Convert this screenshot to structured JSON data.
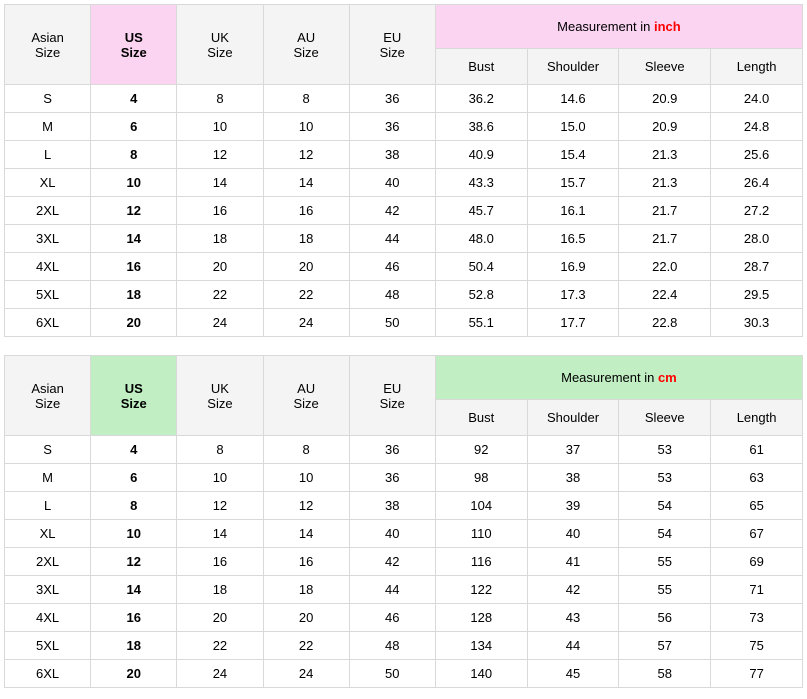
{
  "tables": [
    {
      "highlight_bg": "#fbd4f2",
      "header_bg": "#f4f4f4",
      "unit_label_prefix": "Measurement in ",
      "unit_label_unit": "inch",
      "unit_color": "#ff0000",
      "size_headers": {
        "asian": "Asian\nSize",
        "us": "US\nSize",
        "uk": "UK\nSize",
        "au": "AU\nSize",
        "eu": "EU\nSize"
      },
      "measure_headers": [
        "Bust",
        "Shoulder",
        "Sleeve",
        "Length"
      ],
      "rows": [
        {
          "asian": "S",
          "us": "4",
          "uk": "8",
          "au": "8",
          "eu": "36",
          "m": [
            "36.2",
            "14.6",
            "20.9",
            "24.0"
          ]
        },
        {
          "asian": "M",
          "us": "6",
          "uk": "10",
          "au": "10",
          "eu": "36",
          "m": [
            "38.6",
            "15.0",
            "20.9",
            "24.8"
          ]
        },
        {
          "asian": "L",
          "us": "8",
          "uk": "12",
          "au": "12",
          "eu": "38",
          "m": [
            "40.9",
            "15.4",
            "21.3",
            "25.6"
          ]
        },
        {
          "asian": "XL",
          "us": "10",
          "uk": "14",
          "au": "14",
          "eu": "40",
          "m": [
            "43.3",
            "15.7",
            "21.3",
            "26.4"
          ]
        },
        {
          "asian": "2XL",
          "us": "12",
          "uk": "16",
          "au": "16",
          "eu": "42",
          "m": [
            "45.7",
            "16.1",
            "21.7",
            "27.2"
          ]
        },
        {
          "asian": "3XL",
          "us": "14",
          "uk": "18",
          "au": "18",
          "eu": "44",
          "m": [
            "48.0",
            "16.5",
            "21.7",
            "28.0"
          ]
        },
        {
          "asian": "4XL",
          "us": "16",
          "uk": "20",
          "au": "20",
          "eu": "46",
          "m": [
            "50.4",
            "16.9",
            "22.0",
            "28.7"
          ]
        },
        {
          "asian": "5XL",
          "us": "18",
          "uk": "22",
          "au": "22",
          "eu": "48",
          "m": [
            "52.8",
            "17.3",
            "22.4",
            "29.5"
          ]
        },
        {
          "asian": "6XL",
          "us": "20",
          "uk": "24",
          "au": "24",
          "eu": "50",
          "m": [
            "55.1",
            "17.7",
            "22.8",
            "30.3"
          ]
        }
      ]
    },
    {
      "highlight_bg": "#c1efc3",
      "header_bg": "#f4f4f4",
      "unit_label_prefix": "Measurement in ",
      "unit_label_unit": "cm",
      "unit_color": "#ff0000",
      "size_headers": {
        "asian": "Asian\nSize",
        "us": "US\nSize",
        "uk": "UK\nSize",
        "au": "AU\nSize",
        "eu": "EU\nSize"
      },
      "measure_headers": [
        "Bust",
        "Shoulder",
        "Sleeve",
        "Length"
      ],
      "rows": [
        {
          "asian": "S",
          "us": "4",
          "uk": "8",
          "au": "8",
          "eu": "36",
          "m": [
            "92",
            "37",
            "53",
            "61"
          ]
        },
        {
          "asian": "M",
          "us": "6",
          "uk": "10",
          "au": "10",
          "eu": "36",
          "m": [
            "98",
            "38",
            "53",
            "63"
          ]
        },
        {
          "asian": "L",
          "us": "8",
          "uk": "12",
          "au": "12",
          "eu": "38",
          "m": [
            "104",
            "39",
            "54",
            "65"
          ]
        },
        {
          "asian": "XL",
          "us": "10",
          "uk": "14",
          "au": "14",
          "eu": "40",
          "m": [
            "110",
            "40",
            "54",
            "67"
          ]
        },
        {
          "asian": "2XL",
          "us": "12",
          "uk": "16",
          "au": "16",
          "eu": "42",
          "m": [
            "116",
            "41",
            "55",
            "69"
          ]
        },
        {
          "asian": "3XL",
          "us": "14",
          "uk": "18",
          "au": "18",
          "eu": "44",
          "m": [
            "122",
            "42",
            "55",
            "71"
          ]
        },
        {
          "asian": "4XL",
          "us": "16",
          "uk": "20",
          "au": "20",
          "eu": "46",
          "m": [
            "128",
            "43",
            "56",
            "73"
          ]
        },
        {
          "asian": "5XL",
          "us": "18",
          "uk": "22",
          "au": "22",
          "eu": "48",
          "m": [
            "134",
            "44",
            "57",
            "75"
          ]
        },
        {
          "asian": "6XL",
          "us": "20",
          "uk": "24",
          "au": "24",
          "eu": "50",
          "m": [
            "140",
            "45",
            "58",
            "77"
          ]
        }
      ]
    }
  ],
  "col_widths_pct": [
    10.8,
    10.8,
    10.8,
    10.8,
    10.8,
    11.5,
    11.5,
    11.5,
    11.5
  ]
}
